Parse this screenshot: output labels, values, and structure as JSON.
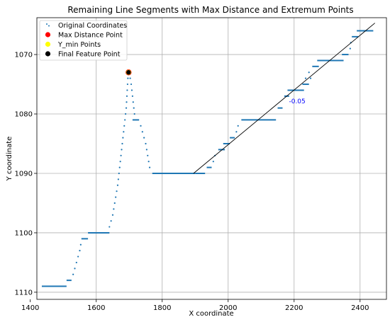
{
  "chart_data": {
    "type": "scatter",
    "title": "Remaining Line Segments with Max Distance and Extremum Points",
    "xlabel": "X coordinate",
    "ylabel": "Y coordinate",
    "xlim": [
      1420,
      2480
    ],
    "ylim": [
      1111.2,
      1063.8
    ],
    "y_inverted": true,
    "grid": true,
    "xticks": [
      1400,
      1600,
      1800,
      2000,
      2200,
      2400
    ],
    "yticks": [
      1070,
      1080,
      1090,
      1100,
      1110
    ],
    "legend_position": "top-left",
    "legend": [
      {
        "label": "Original Coordinates",
        "marker": "small-dot",
        "color": "#1f77b4"
      },
      {
        "label": "Max Distance Point",
        "marker": "circle",
        "color": "#ff0000"
      },
      {
        "label": "Y_min Points",
        "marker": "circle",
        "color": "#ffff00"
      },
      {
        "label": "Final Feature Point",
        "marker": "circle",
        "color": "#000000"
      }
    ],
    "series": [
      {
        "name": "Original Coordinates",
        "color": "#1f77b4",
        "segments": [
          {
            "x": [
              1435,
              1510
            ],
            "y": 1109
          },
          {
            "x": [
              1510,
              1525
            ],
            "y": 1108
          },
          {
            "x": [
              1555,
              1575
            ],
            "y": 1101
          },
          {
            "x": [
              1575,
              1640
            ],
            "y": 1100
          },
          {
            "x": [
              1710,
              1730
            ],
            "y": 1081
          },
          {
            "x": [
              1770,
              1900
            ],
            "y": 1090
          },
          {
            "x": [
              1900,
              1930
            ],
            "y": 1090
          },
          {
            "x": [
              1935,
              1950
            ],
            "y": 1089
          },
          {
            "x": [
              1970,
              1990
            ],
            "y": 1086
          },
          {
            "x": [
              1985,
              2005
            ],
            "y": 1085
          },
          {
            "x": [
              2005,
              2020
            ],
            "y": 1084
          },
          {
            "x": [
              2040,
              2145
            ],
            "y": 1081
          },
          {
            "x": [
              2150,
              2165
            ],
            "y": 1079
          },
          {
            "x": [
              2170,
              2185
            ],
            "y": 1077
          },
          {
            "x": [
              2180,
              2230
            ],
            "y": 1076
          },
          {
            "x": [
              2225,
              2245
            ],
            "y": 1075
          },
          {
            "x": [
              2255,
              2275
            ],
            "y": 1072
          },
          {
            "x": [
              2270,
              2350
            ],
            "y": 1071
          },
          {
            "x": [
              2345,
              2365
            ],
            "y": 1070
          },
          {
            "x": [
              2375,
              2395
            ],
            "y": 1067
          },
          {
            "x": [
              2390,
              2440
            ],
            "y": 1066
          }
        ],
        "points": [
          [
            1530,
            1107
          ],
          [
            1535,
            1106
          ],
          [
            1540,
            1105
          ],
          [
            1545,
            1104
          ],
          [
            1550,
            1103
          ],
          [
            1553,
            1102
          ],
          [
            1640,
            1099
          ],
          [
            1645,
            1098
          ],
          [
            1650,
            1097
          ],
          [
            1653,
            1096
          ],
          [
            1656,
            1095
          ],
          [
            1659,
            1094
          ],
          [
            1662,
            1093
          ],
          [
            1665,
            1092
          ],
          [
            1667,
            1091
          ],
          [
            1669,
            1090
          ],
          [
            1671,
            1089
          ],
          [
            1673,
            1088
          ],
          [
            1675,
            1087
          ],
          [
            1677,
            1086
          ],
          [
            1679,
            1085
          ],
          [
            1681,
            1084
          ],
          [
            1683,
            1083
          ],
          [
            1685,
            1082
          ],
          [
            1687,
            1081
          ],
          [
            1689,
            1080
          ],
          [
            1691,
            1079
          ],
          [
            1692,
            1078
          ],
          [
            1693,
            1077
          ],
          [
            1694,
            1076
          ],
          [
            1695,
            1075
          ],
          [
            1696,
            1074
          ],
          [
            1697,
            1073
          ],
          [
            1703,
            1074
          ],
          [
            1706,
            1075
          ],
          [
            1708,
            1076
          ],
          [
            1710,
            1077
          ],
          [
            1712,
            1078
          ],
          [
            1714,
            1079
          ],
          [
            1716,
            1080
          ],
          [
            1735,
            1082
          ],
          [
            1740,
            1083
          ],
          [
            1745,
            1084
          ],
          [
            1750,
            1085
          ],
          [
            1753,
            1086
          ],
          [
            1756,
            1087
          ],
          [
            1759,
            1088
          ],
          [
            1762,
            1089
          ],
          [
            1955,
            1088
          ],
          [
            1960,
            1087
          ],
          [
            2025,
            1083
          ],
          [
            2030,
            1082
          ],
          [
            2235,
            1074
          ],
          [
            2245,
            1073
          ],
          [
            2370,
            1069
          ],
          [
            2372,
            1068
          ],
          [
            2250,
            1074
          ]
        ]
      },
      {
        "name": "Fitted Line",
        "color": "#000000",
        "line": [
          [
            1895,
            1090
          ],
          [
            2445,
            1064.7
          ]
        ]
      }
    ],
    "feature_points": [
      {
        "name": "Max Distance Point",
        "x": 1698,
        "y": 1073,
        "color": "#ff0000"
      },
      {
        "name": "Y_min Points",
        "x": 1698,
        "y": 1073,
        "color": "#ffff00"
      },
      {
        "name": "Final Feature Point",
        "x": 1698,
        "y": 1073,
        "color": "#000000"
      }
    ],
    "annotations": [
      {
        "text": "-0.05",
        "x": 2180,
        "y": 1078,
        "color": "#0000ff"
      }
    ]
  }
}
